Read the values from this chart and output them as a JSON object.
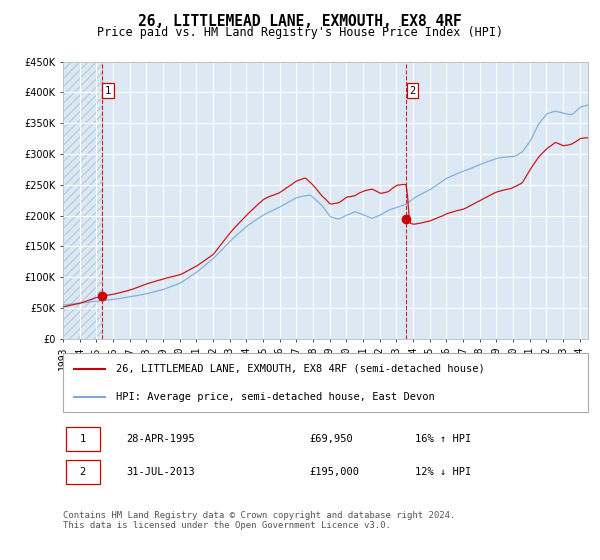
{
  "title": "26, LITTLEMEAD LANE, EXMOUTH, EX8 4RF",
  "subtitle": "Price paid vs. HM Land Registry's House Price Index (HPI)",
  "bg_color": "#dce9f5",
  "hatch_color": "#b8cfe0",
  "grid_color": "#ffffff",
  "red_line_color": "#cc0000",
  "blue_line_color": "#7aaadd",
  "sale1_date": 1995.32,
  "sale1_price": 69950,
  "sale2_date": 2013.58,
  "sale2_price": 195000,
  "ylim_min": 0,
  "ylim_max": 450000,
  "xlim_min": 1993,
  "xlim_max": 2024.5,
  "legend_label_red": "26, LITTLEMEAD LANE, EXMOUTH, EX8 4RF (semi-detached house)",
  "legend_label_blue": "HPI: Average price, semi-detached house, East Devon",
  "title_fontsize": 10.5,
  "subtitle_fontsize": 8.5,
  "tick_fontsize": 7,
  "legend_fontsize": 7.5,
  "table_fontsize": 7.5,
  "footnote_fontsize": 6.5
}
